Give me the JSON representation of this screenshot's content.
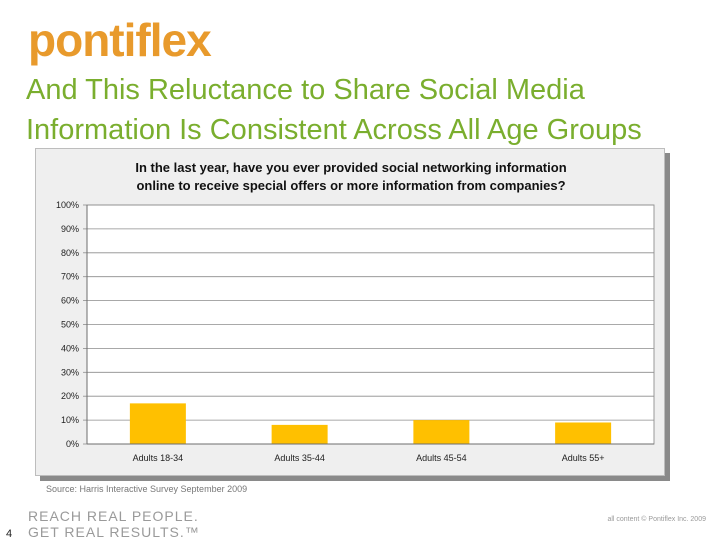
{
  "brand": {
    "logo_text": "pontiflex",
    "tagline_line1": "REACH REAL PEOPLE.",
    "tagline_line2": "GET REAL RESULTS.™",
    "copyright": "all content © Pontiflex Inc. 2009",
    "accent_color": "#e89a2c",
    "headline_color": "#7aae2e"
  },
  "slide": {
    "headline_line1": "And This Reluctance to Share Social Media",
    "headline_line2": "Information Is Consistent Across All Age Groups",
    "source": "Source: Harris Interactive Survey September 2009",
    "page_number": "4"
  },
  "chart_data": {
    "type": "bar",
    "title_line1": "In the last year, have you ever provided social networking information",
    "title_line2": "online to receive special offers or more information from companies?",
    "categories": [
      "Adults 18-34",
      "Adults 35-44",
      "Adults 45-54",
      "Adults 55+"
    ],
    "values": [
      17,
      8,
      10,
      9
    ],
    "ylim": [
      0,
      100
    ],
    "yticks": [
      "0%",
      "10%",
      "20%",
      "30%",
      "40%",
      "50%",
      "60%",
      "70%",
      "80%",
      "90%",
      "100%"
    ],
    "bar_color": "#ffc000",
    "xlabel": "",
    "ylabel": ""
  }
}
